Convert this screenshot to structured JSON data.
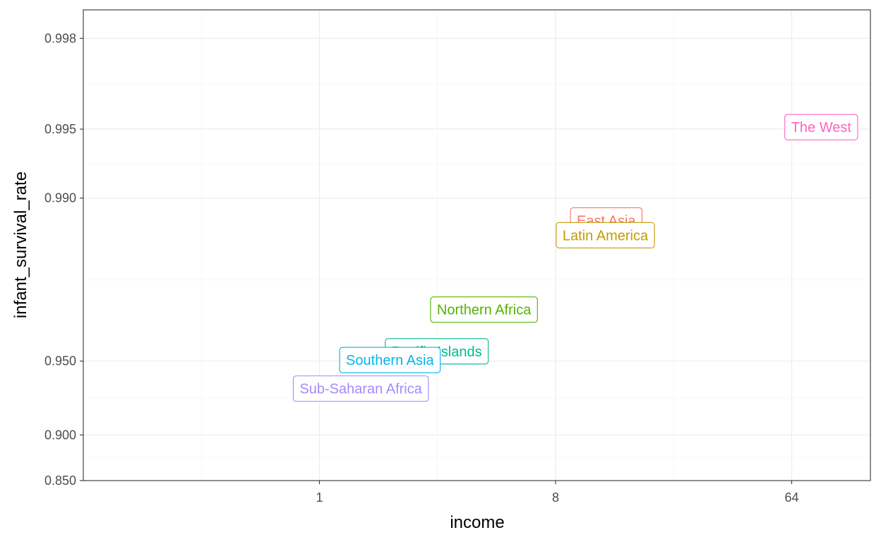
{
  "chart_data": {
    "type": "scatter",
    "title": "",
    "xlabel": "income",
    "ylabel": "infant_survival_rate",
    "x_scale": "log2",
    "y_scale": "logit",
    "xlim": [
      0.125,
      128
    ],
    "ylim": [
      0.85,
      0.9985
    ],
    "x_ticks": [
      1,
      8,
      64
    ],
    "x_tick_labels": [
      "1",
      "8",
      "64"
    ],
    "y_ticks": [
      0.85,
      0.9,
      0.95,
      0.99,
      0.995,
      0.998
    ],
    "y_tick_labels": [
      "0.850",
      "0.900",
      "0.950",
      "0.990",
      "0.995",
      "0.998"
    ],
    "grid": true,
    "legend": "none",
    "points": [
      {
        "label": "The West",
        "x": 83,
        "y": 0.9951,
        "color": "#ff61c3"
      },
      {
        "label": "East Asia",
        "x": 12.5,
        "y": 0.9875,
        "color": "#f8766d"
      },
      {
        "label": "Latin America",
        "x": 12.4,
        "y": 0.9855,
        "color": "#c49a00"
      },
      {
        "label": "Northern Africa",
        "x": 4.26,
        "y": 0.9697,
        "color": "#53b400"
      },
      {
        "label": "Pacific Islands",
        "x": 2.81,
        "y": 0.9545,
        "color": "#00b98b"
      },
      {
        "label": "Southern Asia",
        "x": 1.86,
        "y": 0.9505,
        "color": "#00b6eb"
      },
      {
        "label": "Sub-Saharan Africa",
        "x": 1.44,
        "y": 0.935,
        "color": "#a58aff"
      }
    ]
  }
}
